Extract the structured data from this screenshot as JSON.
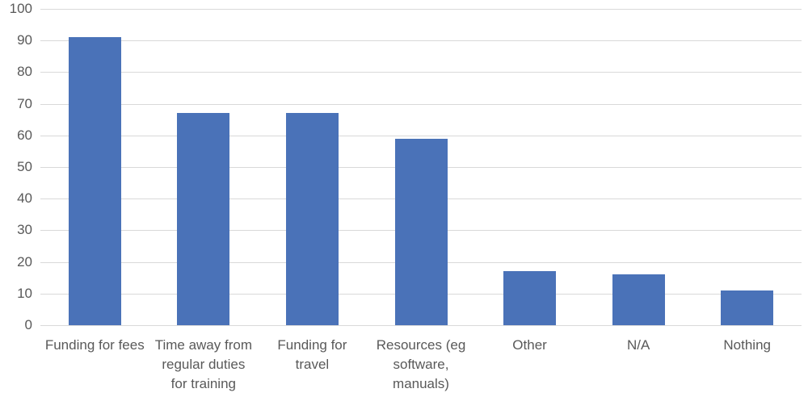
{
  "chart_data": {
    "type": "bar",
    "title": "",
    "xlabel": "",
    "ylabel": "",
    "categories": [
      "Funding for fees",
      "Time away from\nregular duties\nfor training",
      "Funding for\ntravel",
      "Resources (eg\nsoftware,\nmanuals)",
      "Other",
      "N/A",
      "Nothing"
    ],
    "values": [
      91,
      67,
      67,
      59,
      17,
      16,
      11
    ],
    "ylim": [
      0,
      100
    ],
    "yticks": [
      0,
      10,
      20,
      30,
      40,
      50,
      60,
      70,
      80,
      90,
      100
    ],
    "grid": true,
    "legend": null,
    "bar_color": "#4a72b8"
  }
}
